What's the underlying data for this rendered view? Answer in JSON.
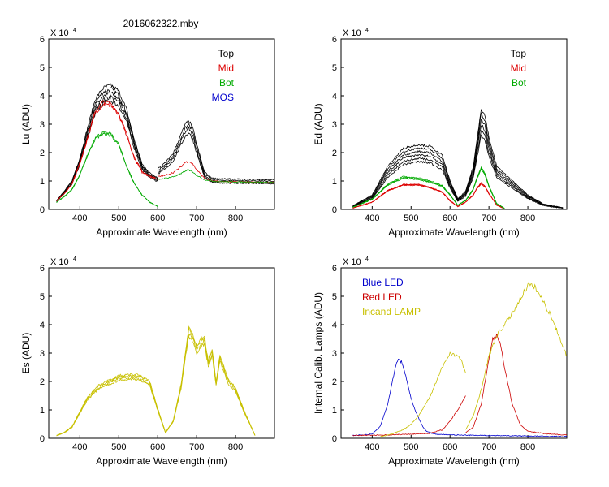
{
  "figure_title": "2016062322.mby",
  "x_axis_label": "Approximate Wavelength (nm)",
  "x_ticks": [
    400,
    500,
    600,
    700,
    800
  ],
  "y_ticks": [
    0,
    1,
    2,
    3,
    4,
    5,
    6
  ],
  "y_exponent_base": "X 10",
  "y_exponent_power": "4",
  "colors": {
    "top": "#000000",
    "mid": "#dd0000",
    "bot": "#00aa00",
    "mos": "#0000cc",
    "blue_led": "#0000cc",
    "red_led": "#cc0000",
    "incand": "#c8c000"
  },
  "chart_data": [
    {
      "id": "lu",
      "type": "line",
      "ylabel": "Lu (ADU)",
      "xlim": [
        320,
        900
      ],
      "ylim": [
        0,
        60000
      ],
      "legend": [
        "Top",
        "Mid",
        "Bot",
        "MOS"
      ],
      "legend_position": "top-right",
      "series": [
        {
          "name": "Top",
          "color": "#000000",
          "x": [
            340,
            360,
            380,
            400,
            420,
            440,
            460,
            480,
            500,
            520,
            540,
            560,
            580,
            600
          ],
          "y": [
            3000,
            6000,
            9500,
            17000,
            27000,
            36500,
            40000,
            41000,
            39000,
            33000,
            23000,
            15000,
            12000,
            10500
          ],
          "offsets": [
            0,
            1000,
            -1000,
            2000,
            -2000
          ]
        },
        {
          "name": "Mid",
          "color": "#dd0000",
          "x": [
            340,
            360,
            380,
            400,
            420,
            440,
            460,
            480,
            500,
            520,
            540,
            560,
            580,
            600
          ],
          "y": [
            3000,
            5500,
            9000,
            16000,
            25000,
            34000,
            37000,
            36500,
            33000,
            26000,
            18000,
            13000,
            11500,
            10500
          ],
          "offsets": [
            0,
            700
          ]
        },
        {
          "name": "Bot",
          "color": "#00aa00",
          "x": [
            340,
            360,
            380,
            400,
            420,
            440,
            460,
            480,
            500,
            520,
            540,
            560,
            580,
            600
          ],
          "y": [
            2500,
            4500,
            7000,
            12000,
            19000,
            25000,
            26500,
            26000,
            22500,
            15000,
            9000,
            5000,
            2500,
            1000
          ],
          "offsets": [
            0,
            600
          ]
        },
        {
          "name": "Top (red band)",
          "color": "#000000",
          "x": [
            600,
            620,
            640,
            660,
            670,
            680,
            690,
            700,
            720,
            740,
            760,
            800,
            850,
            900
          ],
          "y": [
            13000,
            15000,
            18000,
            24000,
            27000,
            28500,
            26000,
            21000,
            12000,
            10000,
            9800,
            9700,
            9600,
            9500
          ],
          "offsets": [
            0,
            1500,
            -1500,
            3000
          ]
        },
        {
          "name": "Mid (red band)",
          "color": "#dd0000",
          "x": [
            600,
            620,
            640,
            660,
            670,
            680,
            690,
            700,
            720,
            740,
            760,
            800,
            850,
            900
          ],
          "y": [
            11500,
            12000,
            13000,
            15000,
            16500,
            17000,
            16000,
            14000,
            11000,
            10000,
            9800,
            9700,
            9600,
            9500
          ],
          "offsets": [
            0
          ]
        },
        {
          "name": "Bot (red band)",
          "color": "#00aa00",
          "x": [
            600,
            620,
            640,
            660,
            670,
            680,
            690,
            700,
            720,
            740,
            760,
            800,
            850,
            900
          ],
          "y": [
            10500,
            11000,
            11500,
            12500,
            13500,
            14000,
            13000,
            12000,
            10500,
            10000,
            9800,
            9700,
            9600,
            9500
          ],
          "offsets": [
            0
          ]
        }
      ]
    },
    {
      "id": "ed",
      "type": "line",
      "ylabel": "Ed  (ADU)",
      "xlim": [
        320,
        900
      ],
      "ylim": [
        0,
        60000
      ],
      "legend": [
        "Top",
        "Mid",
        "Bot"
      ],
      "legend_position": "top-right",
      "series": [
        {
          "name": "Top",
          "color": "#000000",
          "x": [
            350,
            400,
            440,
            480,
            520,
            550,
            580,
            600,
            620,
            640,
            660,
            670,
            680,
            690,
            700,
            720,
            740,
            760,
            780,
            800,
            840,
            870,
            890
          ],
          "y": [
            1000,
            4000,
            12000,
            17000,
            18000,
            17500,
            15000,
            8000,
            3000,
            5000,
            12000,
            20000,
            28000,
            26000,
            20000,
            12000,
            10000,
            8000,
            6000,
            4000,
            1500,
            800,
            500
          ],
          "offsets": [
            0,
            2000,
            4000,
            6000,
            8000,
            -2000
          ]
        },
        {
          "name": "Mid",
          "color": "#dd0000",
          "x": [
            350,
            400,
            440,
            480,
            520,
            550,
            580,
            600,
            620,
            640,
            660,
            670,
            680,
            690,
            700,
            720,
            740
          ],
          "y": [
            500,
            2500,
            6500,
            8500,
            8500,
            7500,
            6000,
            3000,
            1000,
            2500,
            5000,
            7500,
            9000,
            8000,
            5500,
            1500,
            300
          ],
          "offsets": [
            0,
            500,
            1000
          ]
        },
        {
          "name": "Bot",
          "color": "#00aa00",
          "x": [
            350,
            400,
            440,
            480,
            520,
            550,
            580,
            600,
            620,
            640,
            660,
            670,
            680,
            690,
            700,
            720,
            740
          ],
          "y": [
            700,
            3500,
            8500,
            11000,
            10500,
            9500,
            8000,
            5000,
            1500,
            3000,
            7000,
            11000,
            14000,
            12000,
            8000,
            2000,
            400
          ],
          "offsets": [
            0,
            800,
            1600
          ]
        }
      ]
    },
    {
      "id": "es",
      "type": "line",
      "ylabel": "Es  (ADU)",
      "xlim": [
        320,
        900
      ],
      "ylim": [
        0,
        60000
      ],
      "legend": [],
      "series": [
        {
          "name": "Es",
          "color": "#c8c000",
          "x": [
            340,
            360,
            380,
            400,
            420,
            450,
            500,
            550,
            580,
            600,
            620,
            640,
            660,
            670,
            680,
            690,
            700,
            710,
            720,
            730,
            740,
            750,
            760,
            780,
            800,
            820,
            840,
            850
          ],
          "y": [
            1000,
            2000,
            4000,
            9000,
            14000,
            18000,
            21000,
            21500,
            19000,
            10000,
            2000,
            6000,
            18000,
            28000,
            37000,
            35000,
            31000,
            33000,
            34000,
            26000,
            30000,
            19000,
            28000,
            20000,
            17000,
            10000,
            4000,
            1000
          ],
          "offsets": [
            0,
            800,
            -800,
            1500
          ]
        }
      ]
    },
    {
      "id": "lamps",
      "type": "line",
      "ylabel": "Internal Calib. Lamps (ADU)",
      "xlim": [
        320,
        900
      ],
      "ylim": [
        0,
        60000
      ],
      "legend": [
        "Blue LED",
        "Red LED",
        "Incand LAMP"
      ],
      "legend_position": "top-left",
      "series": [
        {
          "name": "Blue LED",
          "color": "#0000cc",
          "x": [
            350,
            380,
            400,
            420,
            440,
            455,
            465,
            475,
            490,
            500,
            510,
            520,
            530,
            540,
            560,
            600,
            700,
            800,
            900
          ],
          "y": [
            1000,
            1200,
            1500,
            4000,
            12000,
            22000,
            27500,
            27000,
            20000,
            14000,
            10000,
            7000,
            4000,
            2500,
            1500,
            1200,
            1000,
            800,
            600
          ],
          "offsets": [
            0
          ]
        },
        {
          "name": "Red LED (low)",
          "color": "#cc0000",
          "x": [
            350,
            450,
            550,
            580,
            600,
            620,
            640
          ],
          "y": [
            1000,
            1200,
            1800,
            3000,
            6000,
            10000,
            15000
          ],
          "offsets": [
            0
          ]
        },
        {
          "name": "Red LED",
          "color": "#cc0000",
          "x": [
            640,
            660,
            680,
            700,
            710,
            720,
            730,
            740,
            760,
            780,
            800,
            850,
            900
          ],
          "y": [
            2000,
            4000,
            12000,
            28000,
            35000,
            36500,
            33000,
            25000,
            12000,
            5000,
            2500,
            1500,
            1200
          ],
          "offsets": [
            0
          ]
        },
        {
          "name": "Incand LAMP (low)",
          "color": "#c8c000",
          "x": [
            420,
            450,
            480,
            500,
            520,
            550,
            580,
            600,
            620,
            630,
            640
          ],
          "y": [
            500,
            1500,
            3000,
            5000,
            8000,
            15000,
            25000,
            30000,
            29000,
            27000,
            23000
          ],
          "offsets": [
            0
          ]
        },
        {
          "name": "Incand LAMP",
          "color": "#c8c000",
          "x": [
            640,
            660,
            680,
            700,
            720,
            740,
            760,
            780,
            800,
            820,
            840,
            860,
            880,
            900
          ],
          "y": [
            3000,
            8000,
            17000,
            29000,
            36000,
            40000,
            44000,
            49000,
            54000,
            53000,
            48000,
            43000,
            36000,
            29000
          ],
          "offsets": [
            0
          ]
        }
      ]
    }
  ]
}
